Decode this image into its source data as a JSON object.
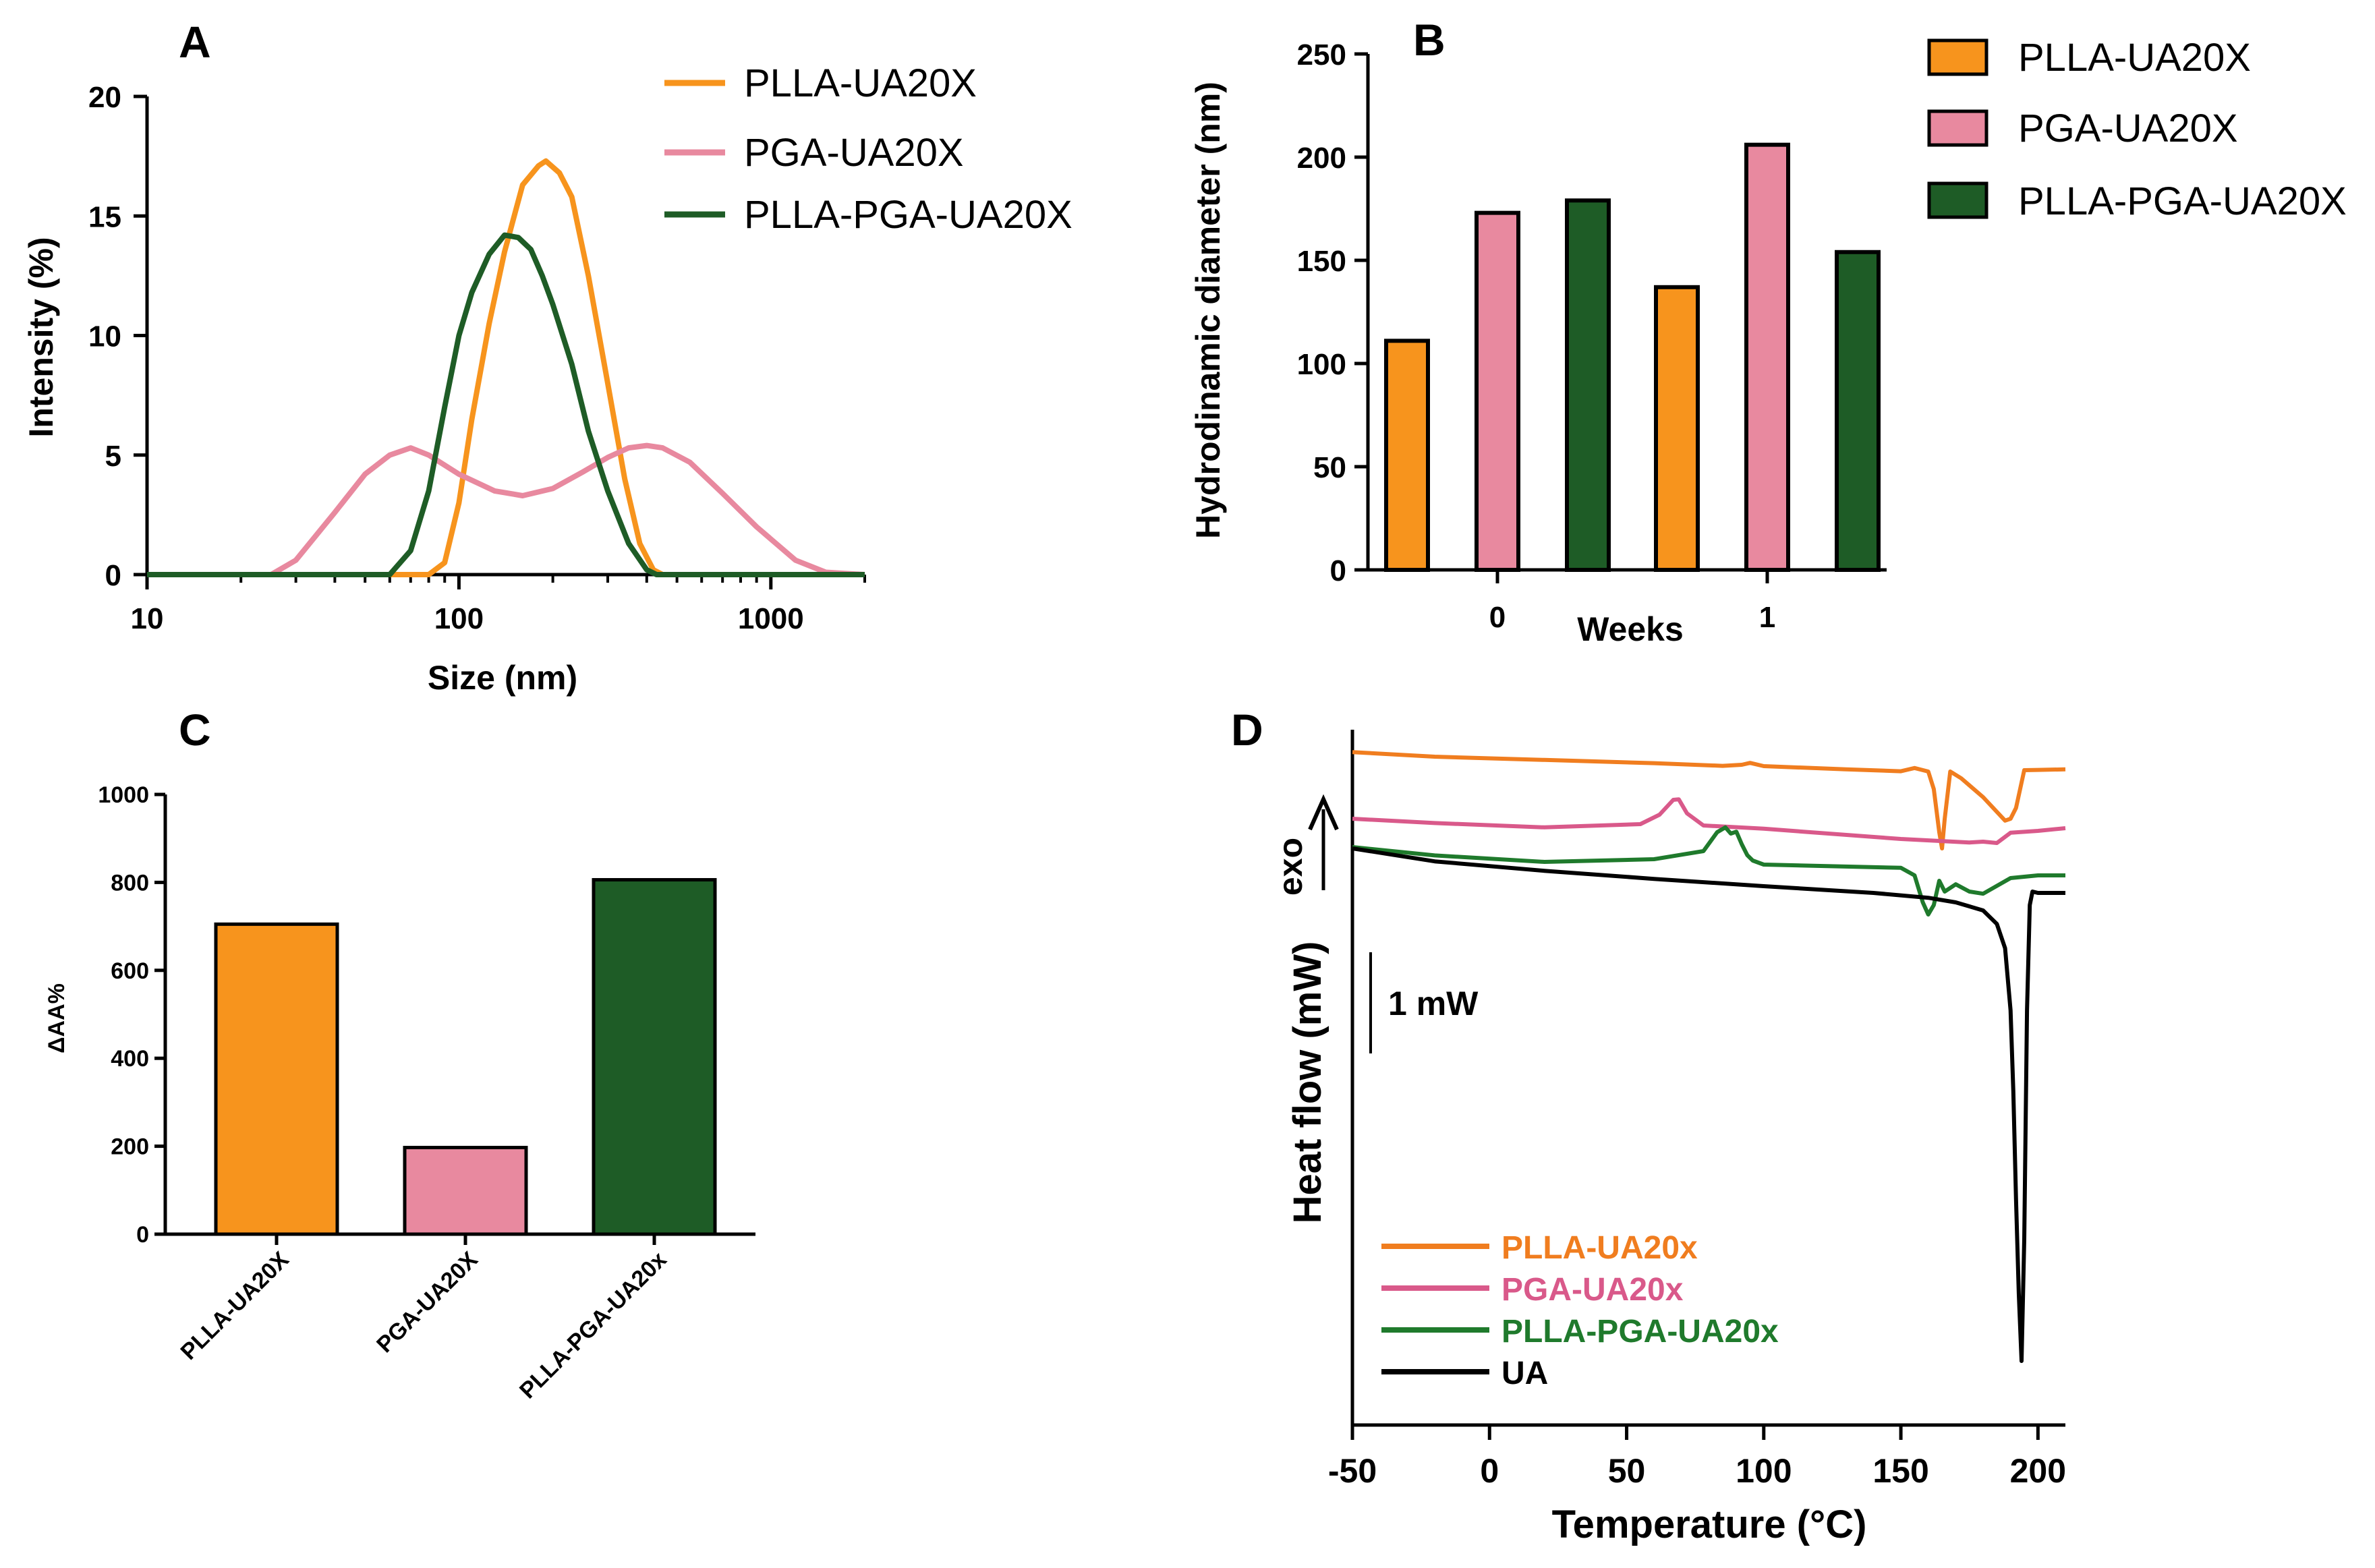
{
  "colors": {
    "plla": "#f7941d",
    "pga": "#e8899f",
    "plla_pga": "#1e5c26",
    "ua": "#000000",
    "pink_dsc": "#d9598a",
    "green_dsc": "#1f7a2c",
    "orange_dsc": "#f07d1f"
  },
  "panel_labels": {
    "a": "A",
    "b": "B",
    "c": "C",
    "d": "D"
  },
  "chart_data": [
    {
      "id": "A",
      "type": "line",
      "xscale": "log",
      "xlabel": "Size (nm)",
      "ylabel": "Intensity (%)",
      "xlim": [
        10,
        2000
      ],
      "ylim": [
        0,
        20
      ],
      "xticks": [
        "10",
        "100",
        "1000"
      ],
      "yticks": [
        "0",
        "5",
        "10",
        "15",
        "20"
      ],
      "legend_position": "top-right",
      "series": [
        {
          "name": "PLLA-UA20X",
          "x": [
            10,
            80,
            90,
            100,
            110,
            125,
            140,
            160,
            180,
            190,
            210,
            230,
            260,
            300,
            340,
            380,
            420,
            450,
            2000
          ],
          "y": [
            0,
            0,
            0.5,
            3,
            6.5,
            10.5,
            13.5,
            16.3,
            17.1,
            17.3,
            16.8,
            15.8,
            12.5,
            8,
            4,
            1.3,
            0.2,
            0,
            0
          ]
        },
        {
          "name": "PGA-UA20X",
          "x": [
            10,
            25,
            30,
            40,
            50,
            60,
            70,
            80,
            100,
            130,
            160,
            200,
            250,
            300,
            350,
            400,
            450,
            550,
            700,
            900,
            1200,
            1500,
            2000
          ],
          "y": [
            0,
            0,
            0.6,
            2.6,
            4.2,
            5.0,
            5.3,
            5.0,
            4.2,
            3.5,
            3.3,
            3.6,
            4.3,
            4.9,
            5.3,
            5.4,
            5.3,
            4.7,
            3.4,
            2.0,
            0.6,
            0.1,
            0
          ]
        },
        {
          "name": "PLLA-PGA-UA20X",
          "x": [
            10,
            60,
            70,
            80,
            90,
            100,
            110,
            125,
            140,
            155,
            170,
            185,
            200,
            230,
            260,
            300,
            350,
            400,
            430,
            2000
          ],
          "y": [
            0,
            0,
            1.0,
            3.5,
            7.0,
            10.0,
            11.8,
            13.4,
            14.2,
            14.1,
            13.6,
            12.5,
            11.3,
            8.8,
            6.0,
            3.5,
            1.3,
            0.2,
            0,
            0
          ]
        }
      ]
    },
    {
      "id": "B",
      "type": "bar",
      "xlabel": "Weeks",
      "ylabel": "Hydrodinamic diameter (nm)",
      "ylim": [
        0,
        250
      ],
      "yticks": [
        "0",
        "50",
        "100",
        "150",
        "200",
        "250"
      ],
      "categories": [
        "0",
        "1"
      ],
      "legend_position": "top-right",
      "series": [
        {
          "name": "PLLA-UA20X",
          "values": [
            111,
            137
          ]
        },
        {
          "name": "PGA-UA20X",
          "values": [
            173,
            206
          ]
        },
        {
          "name": "PLLA-PGA-UA20X",
          "values": [
            179,
            154
          ]
        }
      ]
    },
    {
      "id": "C",
      "type": "bar",
      "ylabel": "ΔAA%",
      "ylim": [
        0,
        1000
      ],
      "yticks": [
        "0",
        "200",
        "400",
        "600",
        "800",
        "1000"
      ],
      "categories": [
        "PLLA-UA20X",
        "PGA-UA20X",
        "PLLA-PGA-UA20x"
      ],
      "values": [
        705,
        197,
        806
      ]
    },
    {
      "id": "D",
      "type": "line",
      "xlabel": "Temperature (°C)",
      "ylabel": "Heat flow (mW)",
      "xlim": [
        -50,
        210
      ],
      "xticks": [
        "-50",
        "0",
        "50",
        "100",
        "150",
        "200"
      ],
      "exo_label": "exo",
      "scale_bar_label": "1 mW",
      "scale_bar_value_mw": 1,
      "legend_position": "bottom-left",
      "series": [
        {
          "name": "PLLA-UA20x",
          "x": [
            -50,
            -20,
            20,
            60,
            85,
            92,
            95,
            100,
            130,
            150,
            155,
            160,
            162,
            164,
            165,
            166,
            168,
            172,
            180,
            188,
            190,
            192,
            195,
            200,
            210
          ],
          "y": [
            3.57,
            3.4,
            3.28,
            3.16,
            3.06,
            3.1,
            3.17,
            3.05,
            2.93,
            2.86,
            2.98,
            2.85,
            2.2,
            0.6,
            0.0,
            1.1,
            2.85,
            2.6,
            1.9,
            1.03,
            1.1,
            1.5,
            2.9,
            2.91,
            2.93
          ]
        },
        {
          "name": "PGA-UA20x",
          "x": [
            -50,
            -20,
            20,
            55,
            62,
            67,
            69,
            72,
            78,
            100,
            150,
            175,
            180,
            185,
            190,
            200,
            210
          ],
          "y": [
            1.1,
            0.94,
            0.78,
            0.9,
            1.25,
            1.8,
            1.82,
            1.3,
            0.85,
            0.73,
            0.35,
            0.22,
            0.25,
            0.2,
            0.58,
            0.65,
            0.75
          ]
        },
        {
          "name": "PLLA-PGA-UA20x",
          "x": [
            -50,
            -20,
            20,
            60,
            78,
            83,
            86,
            88,
            90,
            92,
            94,
            96,
            100,
            150,
            155,
            158,
            160,
            162,
            164,
            166,
            170,
            175,
            180,
            190,
            200,
            210
          ],
          "y": [
            0.05,
            -0.26,
            -0.5,
            -0.4,
            -0.1,
            0.6,
            0.78,
            0.55,
            0.62,
            0.15,
            -0.25,
            -0.45,
            -0.6,
            -0.72,
            -1.0,
            -2.0,
            -2.45,
            -2.1,
            -1.2,
            -1.6,
            -1.33,
            -1.6,
            -1.68,
            -1.1,
            -1.0,
            -1.0
          ]
        },
        {
          "name": "UA",
          "x": [
            -50,
            -20,
            20,
            60,
            100,
            140,
            160,
            170,
            180,
            185,
            188,
            190,
            191,
            192,
            193,
            194,
            195,
            196,
            197,
            198,
            200,
            205,
            210
          ],
          "y": [
            0,
            -0.48,
            -0.83,
            -1.13,
            -1.4,
            -1.65,
            -1.83,
            -2.0,
            -2.3,
            -2.8,
            -3.7,
            -6.0,
            -9.0,
            -13.0,
            -16.5,
            -19.0,
            -14.5,
            -6.0,
            -2.1,
            -1.6,
            -1.65,
            -1.65,
            -1.65
          ]
        }
      ]
    }
  ]
}
